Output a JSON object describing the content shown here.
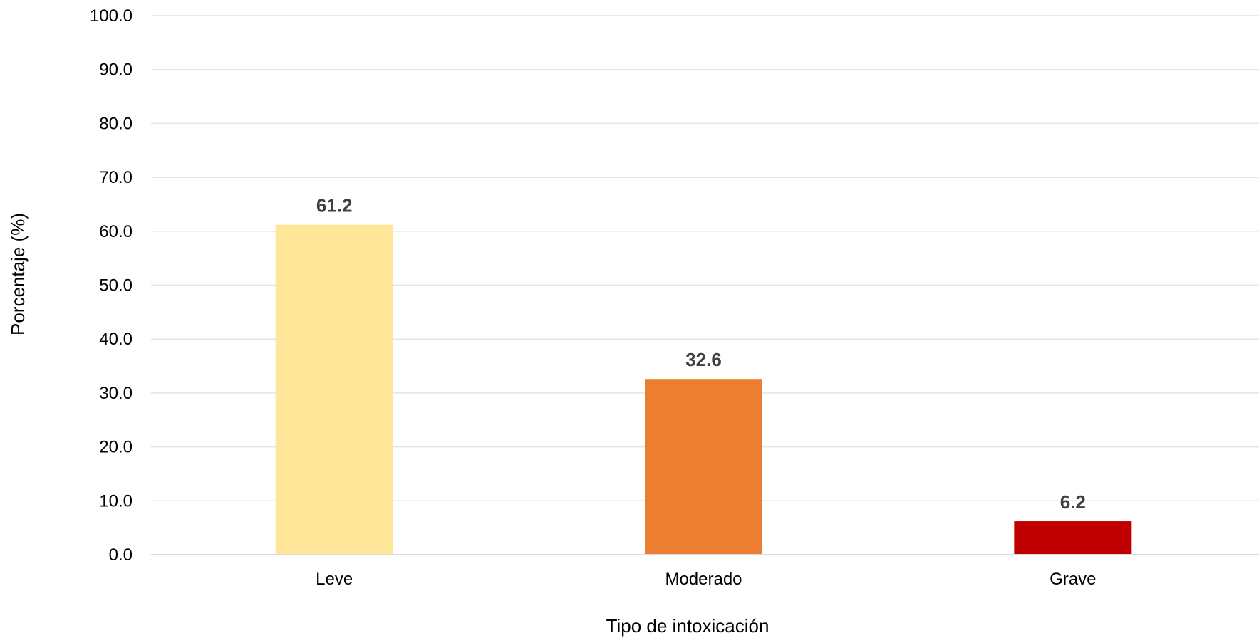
{
  "chart_data": {
    "type": "bar",
    "title": "",
    "xlabel": "Tipo de intoxicación",
    "ylabel": "Porcentaje (%)",
    "categories": [
      "Leve",
      "Moderado",
      "Grave"
    ],
    "values": [
      61.2,
      32.6,
      6.2
    ],
    "value_labels": [
      "61.2",
      "32.6",
      "6.2"
    ],
    "colors": [
      "#FFE699",
      "#ED7D31",
      "#C00000"
    ],
    "ylim": [
      0,
      100
    ],
    "yticks": [
      "0.0",
      "10.0",
      "20.0",
      "30.0",
      "40.0",
      "50.0",
      "60.0",
      "70.0",
      "80.0",
      "90.0",
      "100.0"
    ],
    "grid": true,
    "grid_color": "#DCE6F0",
    "legend": "none"
  }
}
